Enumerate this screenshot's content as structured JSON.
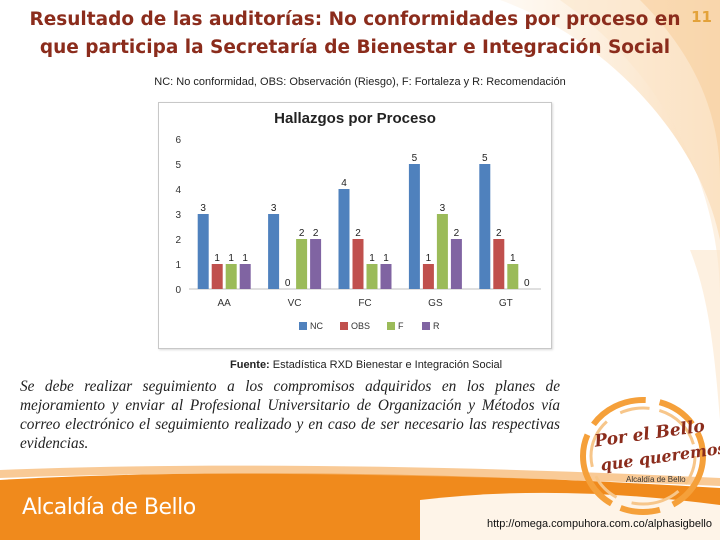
{
  "slide": {
    "title_line1": "Resultado de las auditorías: No conformidades por proceso en",
    "title_line2": "que participa la Secretaría de Bienestar e Integración Social",
    "page_number": "11",
    "abbreviations": "NC: No conformidad, OBS: Observación (Riesgo), F: Fortaleza y R: Recomendación",
    "source_label": "Fuente:",
    "source_text": "Estadística RXD Bienestar e Integración Social",
    "body": "Se debe realizar seguimiento a los compromisos adquiridos en los planes de mejoramiento y enviar al Profesional Universitario de Organización y Métodos vía correo electrónico el seguimiento realizado y en caso de ser necesario las respectivas evidencias.",
    "logo": {
      "line1": "Por el Bello",
      "line2": "que queremos",
      "line3": "Alcaldía de Bello"
    },
    "footer_brand": "Alcaldía de Bello",
    "footer_url": "http://omega.compuhora.com.co/alphasigbello",
    "colors": {
      "title": "#8b2c1c",
      "accent": "#f08a1c",
      "footer_band": "#f08a1c"
    }
  },
  "chart_data": {
    "type": "bar",
    "title": "Hallazgos por Proceso",
    "categories": [
      "AA",
      "VC",
      "FC",
      "GS",
      "GT"
    ],
    "series": [
      {
        "name": "NC",
        "color": "#4f81bd",
        "values": [
          3,
          3,
          4,
          5,
          5
        ]
      },
      {
        "name": "OBS",
        "color": "#c0504d",
        "values": [
          1,
          0,
          2,
          1,
          2
        ]
      },
      {
        "name": "F",
        "color": "#9bbb59",
        "values": [
          1,
          2,
          1,
          3,
          1
        ]
      },
      {
        "name": "R",
        "color": "#8064a2",
        "values": [
          1,
          2,
          1,
          2,
          0
        ]
      }
    ],
    "ylim": [
      0,
      6
    ],
    "yticks": [
      0,
      1,
      2,
      3,
      4,
      5,
      6
    ],
    "grid": false,
    "data_labels": true,
    "legend_position": "bottom"
  }
}
